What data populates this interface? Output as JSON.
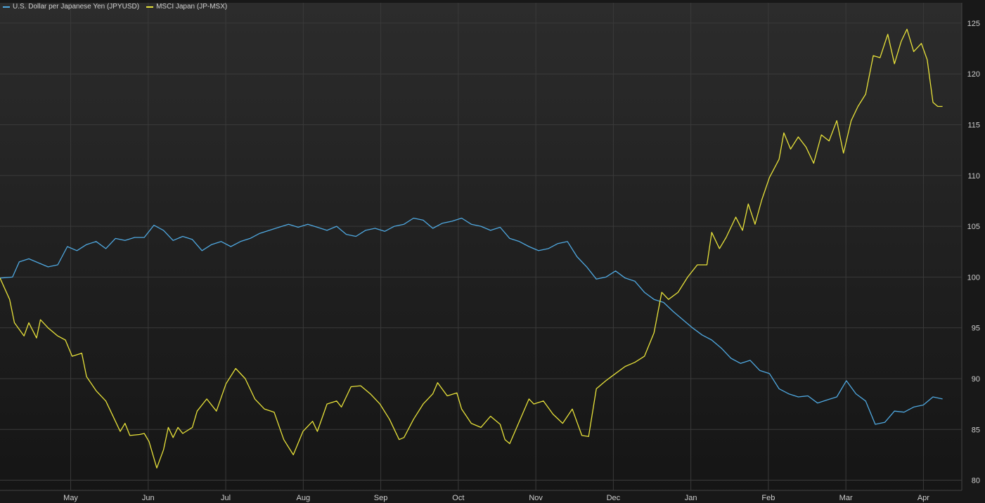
{
  "colors": {
    "background_top": "#2c2c2c",
    "background_bottom": "#151515",
    "grid": "#3a3a3a",
    "axis_text": "#cfcfcf",
    "jpyusd": "#4fa8e0",
    "msci": "#e8e23a"
  },
  "legend": {
    "items": [
      {
        "label": "U.S. Dollar per Japanese Yen (JPYUSD)",
        "color": "#4fa8e0"
      },
      {
        "label": "MSCI Japan (JP-MSX)",
        "color": "#e8e23a"
      }
    ]
  },
  "chart_data": {
    "type": "line",
    "title": "",
    "xlabel": "",
    "ylabel": "",
    "x_ticks": [
      "May",
      "Jun",
      "Jul",
      "Aug",
      "Sep",
      "Oct",
      "Nov",
      "Dec",
      "Jan",
      "Feb",
      "Mar",
      "Apr"
    ],
    "x_range": [
      0,
      1
    ],
    "ylim": [
      79,
      127
    ],
    "y_ticks": [
      80,
      85,
      90,
      95,
      100,
      105,
      110,
      115,
      120,
      125
    ],
    "y_axis_position": "right",
    "legend_position": "top-left",
    "grid": true,
    "series": [
      {
        "name": "U.S. Dollar per Japanese Yen (JPYUSD)",
        "color": "#4fa8e0",
        "points": [
          [
            0.0,
            99.9
          ],
          [
            0.013,
            100.0
          ],
          [
            0.02,
            101.5
          ],
          [
            0.03,
            101.8
          ],
          [
            0.04,
            101.4
          ],
          [
            0.05,
            101.0
          ],
          [
            0.06,
            101.2
          ],
          [
            0.07,
            103.0
          ],
          [
            0.08,
            102.6
          ],
          [
            0.09,
            103.2
          ],
          [
            0.1,
            103.5
          ],
          [
            0.11,
            102.8
          ],
          [
            0.12,
            103.8
          ],
          [
            0.13,
            103.6
          ],
          [
            0.14,
            103.9
          ],
          [
            0.15,
            103.9
          ],
          [
            0.16,
            105.1
          ],
          [
            0.17,
            104.6
          ],
          [
            0.18,
            103.6
          ],
          [
            0.19,
            104.0
          ],
          [
            0.2,
            103.7
          ],
          [
            0.21,
            102.6
          ],
          [
            0.22,
            103.2
          ],
          [
            0.23,
            103.5
          ],
          [
            0.24,
            103.0
          ],
          [
            0.25,
            103.5
          ],
          [
            0.26,
            103.8
          ],
          [
            0.27,
            104.3
          ],
          [
            0.28,
            104.6
          ],
          [
            0.29,
            104.9
          ],
          [
            0.3,
            105.2
          ],
          [
            0.31,
            104.9
          ],
          [
            0.32,
            105.2
          ],
          [
            0.33,
            104.9
          ],
          [
            0.34,
            104.6
          ],
          [
            0.35,
            105.0
          ],
          [
            0.36,
            104.2
          ],
          [
            0.37,
            104.0
          ],
          [
            0.38,
            104.6
          ],
          [
            0.39,
            104.8
          ],
          [
            0.4,
            104.5
          ],
          [
            0.41,
            105.0
          ],
          [
            0.42,
            105.2
          ],
          [
            0.43,
            105.8
          ],
          [
            0.44,
            105.6
          ],
          [
            0.45,
            104.8
          ],
          [
            0.46,
            105.3
          ],
          [
            0.47,
            105.5
          ],
          [
            0.48,
            105.8
          ],
          [
            0.49,
            105.2
          ],
          [
            0.5,
            105.0
          ],
          [
            0.51,
            104.6
          ],
          [
            0.52,
            104.9
          ],
          [
            0.53,
            103.8
          ],
          [
            0.54,
            103.5
          ],
          [
            0.55,
            103.0
          ],
          [
            0.56,
            102.6
          ],
          [
            0.57,
            102.8
          ],
          [
            0.58,
            103.3
          ],
          [
            0.59,
            103.5
          ],
          [
            0.6,
            102.0
          ],
          [
            0.61,
            101.0
          ],
          [
            0.62,
            99.8
          ],
          [
            0.63,
            100.0
          ],
          [
            0.64,
            100.6
          ],
          [
            0.65,
            99.9
          ],
          [
            0.66,
            99.6
          ],
          [
            0.67,
            98.5
          ],
          [
            0.68,
            97.8
          ],
          [
            0.69,
            97.5
          ],
          [
            0.7,
            96.6
          ],
          [
            0.71,
            95.8
          ],
          [
            0.72,
            95.0
          ],
          [
            0.73,
            94.3
          ],
          [
            0.74,
            93.8
          ],
          [
            0.75,
            93.0
          ],
          [
            0.76,
            92.0
          ],
          [
            0.77,
            91.5
          ],
          [
            0.78,
            91.8
          ],
          [
            0.79,
            90.8
          ],
          [
            0.8,
            90.5
          ],
          [
            0.81,
            89.0
          ],
          [
            0.82,
            88.5
          ],
          [
            0.83,
            88.2
          ],
          [
            0.84,
            88.3
          ],
          [
            0.85,
            87.6
          ],
          [
            0.86,
            87.9
          ],
          [
            0.87,
            88.2
          ],
          [
            0.88,
            89.8
          ],
          [
            0.89,
            88.5
          ],
          [
            0.9,
            87.8
          ],
          [
            0.91,
            85.5
          ],
          [
            0.92,
            85.7
          ],
          [
            0.93,
            86.8
          ],
          [
            0.94,
            86.7
          ],
          [
            0.95,
            87.2
          ],
          [
            0.96,
            87.4
          ],
          [
            0.97,
            88.2
          ],
          [
            0.98,
            88.0
          ]
        ]
      },
      {
        "name": "MSCI Japan (JP-MSX)",
        "color": "#e8e23a",
        "points": [
          [
            0.0,
            99.9
          ],
          [
            0.01,
            97.8
          ],
          [
            0.015,
            95.5
          ],
          [
            0.025,
            94.2
          ],
          [
            0.03,
            95.5
          ],
          [
            0.038,
            94.0
          ],
          [
            0.042,
            95.8
          ],
          [
            0.05,
            95.0
          ],
          [
            0.06,
            94.2
          ],
          [
            0.068,
            93.8
          ],
          [
            0.075,
            92.2
          ],
          [
            0.085,
            92.5
          ],
          [
            0.09,
            90.2
          ],
          [
            0.1,
            88.8
          ],
          [
            0.11,
            87.8
          ],
          [
            0.12,
            85.8
          ],
          [
            0.125,
            84.8
          ],
          [
            0.13,
            85.6
          ],
          [
            0.135,
            84.4
          ],
          [
            0.145,
            84.5
          ],
          [
            0.15,
            84.6
          ],
          [
            0.155,
            83.8
          ],
          [
            0.163,
            81.2
          ],
          [
            0.17,
            83.0
          ],
          [
            0.175,
            85.2
          ],
          [
            0.18,
            84.2
          ],
          [
            0.185,
            85.2
          ],
          [
            0.19,
            84.6
          ],
          [
            0.2,
            85.2
          ],
          [
            0.205,
            86.8
          ],
          [
            0.215,
            88.0
          ],
          [
            0.225,
            86.8
          ],
          [
            0.235,
            89.5
          ],
          [
            0.245,
            91.0
          ],
          [
            0.255,
            90.0
          ],
          [
            0.265,
            88.0
          ],
          [
            0.275,
            87.0
          ],
          [
            0.285,
            86.7
          ],
          [
            0.295,
            84.0
          ],
          [
            0.305,
            82.5
          ],
          [
            0.315,
            84.8
          ],
          [
            0.325,
            85.8
          ],
          [
            0.33,
            84.8
          ],
          [
            0.34,
            87.5
          ],
          [
            0.35,
            87.8
          ],
          [
            0.355,
            87.2
          ],
          [
            0.365,
            89.2
          ],
          [
            0.375,
            89.3
          ],
          [
            0.385,
            88.5
          ],
          [
            0.395,
            87.5
          ],
          [
            0.405,
            86.0
          ],
          [
            0.415,
            84.0
          ],
          [
            0.42,
            84.2
          ],
          [
            0.43,
            86.0
          ],
          [
            0.44,
            87.5
          ],
          [
            0.45,
            88.5
          ],
          [
            0.455,
            89.6
          ],
          [
            0.465,
            88.3
          ],
          [
            0.475,
            88.6
          ],
          [
            0.48,
            87.0
          ],
          [
            0.49,
            85.6
          ],
          [
            0.5,
            85.2
          ],
          [
            0.51,
            86.3
          ],
          [
            0.52,
            85.5
          ],
          [
            0.525,
            84.0
          ],
          [
            0.53,
            83.6
          ],
          [
            0.54,
            85.8
          ],
          [
            0.55,
            88.0
          ],
          [
            0.555,
            87.5
          ],
          [
            0.565,
            87.8
          ],
          [
            0.575,
            86.5
          ],
          [
            0.585,
            85.6
          ],
          [
            0.595,
            87.0
          ],
          [
            0.605,
            84.4
          ],
          [
            0.612,
            84.3
          ],
          [
            0.62,
            89.0
          ],
          [
            0.63,
            89.8
          ],
          [
            0.64,
            90.5
          ],
          [
            0.65,
            91.2
          ],
          [
            0.66,
            91.6
          ],
          [
            0.67,
            92.2
          ],
          [
            0.68,
            94.5
          ],
          [
            0.688,
            98.5
          ],
          [
            0.695,
            97.8
          ],
          [
            0.705,
            98.5
          ],
          [
            0.715,
            100.0
          ],
          [
            0.725,
            101.2
          ],
          [
            0.735,
            101.2
          ],
          [
            0.74,
            104.4
          ],
          [
            0.748,
            102.8
          ],
          [
            0.755,
            103.9
          ],
          [
            0.765,
            105.9
          ],
          [
            0.772,
            104.6
          ],
          [
            0.778,
            107.2
          ],
          [
            0.785,
            105.2
          ],
          [
            0.792,
            107.6
          ],
          [
            0.8,
            109.8
          ],
          [
            0.81,
            111.6
          ],
          [
            0.815,
            114.2
          ],
          [
            0.822,
            112.6
          ],
          [
            0.83,
            113.8
          ],
          [
            0.838,
            112.8
          ],
          [
            0.846,
            111.2
          ],
          [
            0.854,
            114.0
          ],
          [
            0.862,
            113.4
          ],
          [
            0.87,
            115.4
          ],
          [
            0.877,
            112.2
          ],
          [
            0.885,
            115.4
          ],
          [
            0.892,
            116.8
          ],
          [
            0.9,
            118.0
          ],
          [
            0.908,
            121.8
          ],
          [
            0.915,
            121.6
          ],
          [
            0.923,
            123.9
          ],
          [
            0.93,
            121.0
          ],
          [
            0.937,
            123.2
          ],
          [
            0.943,
            124.4
          ],
          [
            0.95,
            122.2
          ],
          [
            0.958,
            123.0
          ],
          [
            0.964,
            121.4
          ],
          [
            0.97,
            117.2
          ],
          [
            0.975,
            116.8
          ],
          [
            0.98,
            116.8
          ]
        ]
      }
    ]
  }
}
